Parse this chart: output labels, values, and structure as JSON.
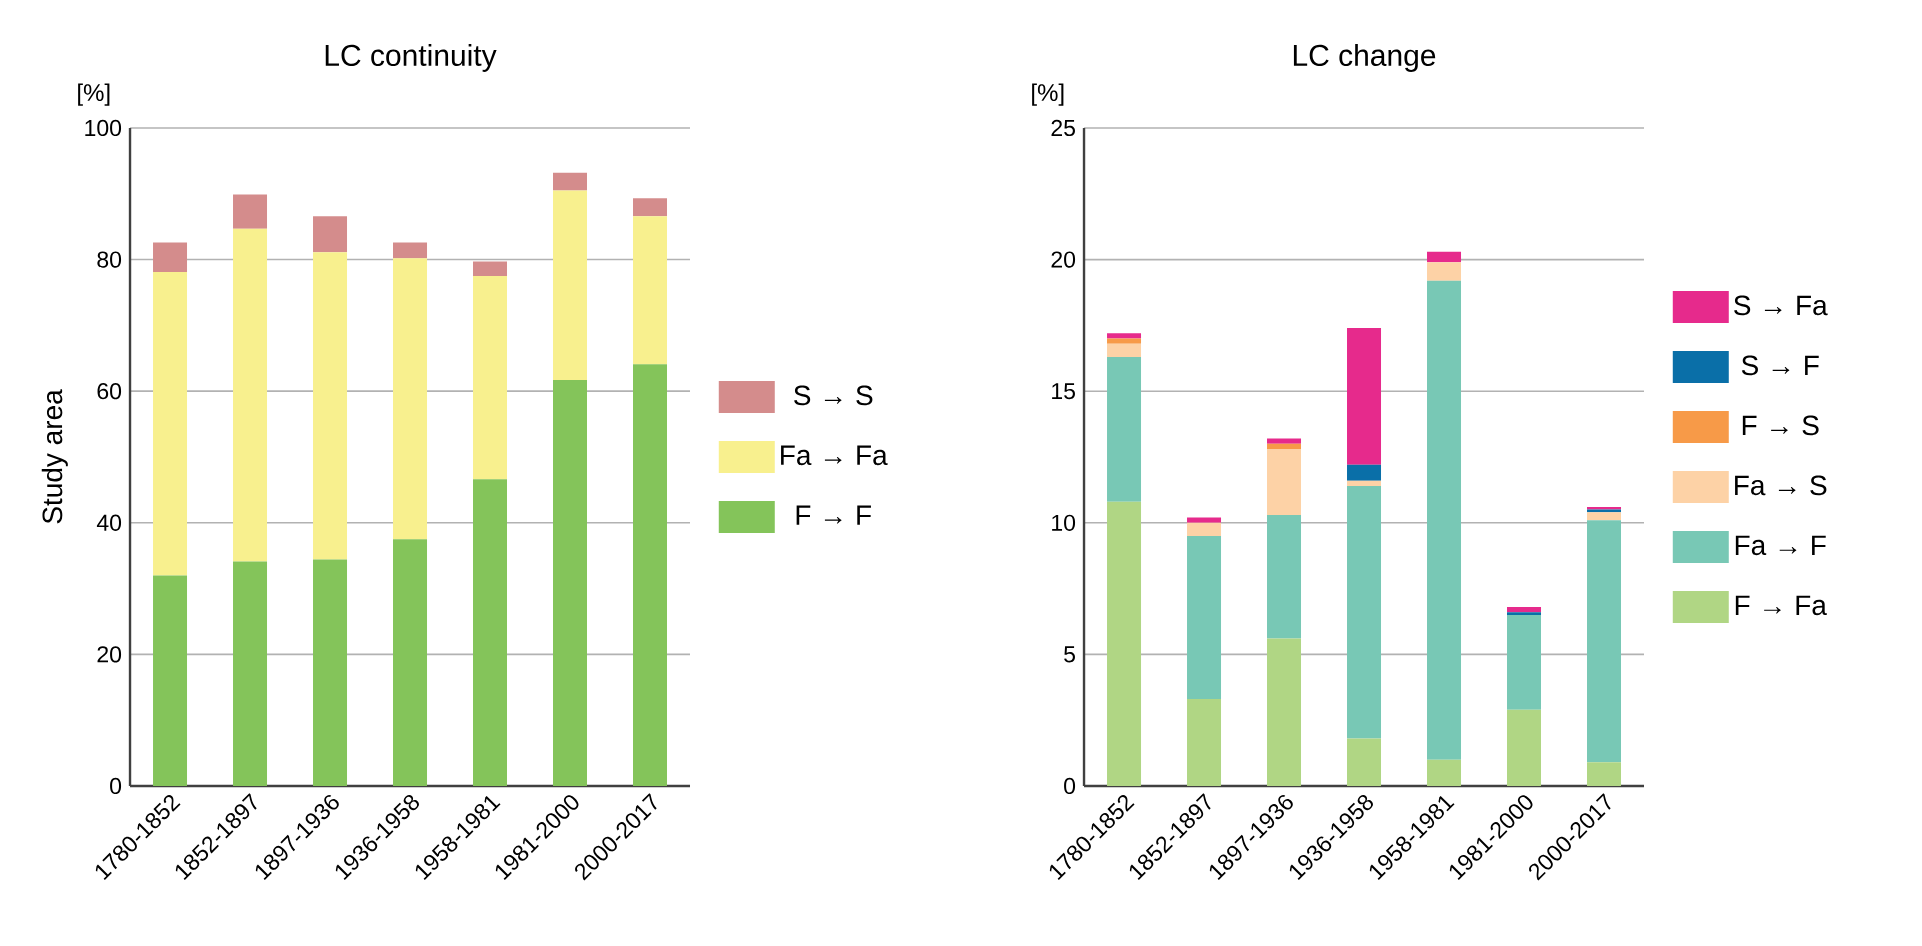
{
  "chart_data": [
    {
      "type": "bar",
      "title": "LC continuity",
      "ylabel": "Study area",
      "annotations": [
        "[%]"
      ],
      "stacked": true,
      "grid": "y",
      "legend": "right",
      "categories": [
        "1780-1852",
        "1852-1897",
        "1897-1936",
        "1936-1958",
        "1958-1981",
        "1981-2000",
        "2000-2017"
      ],
      "ylim": [
        0,
        100
      ],
      "yticks": [
        0,
        20,
        40,
        60,
        80,
        100
      ],
      "series": [
        {
          "name": "F → F",
          "color": "#84c45a",
          "values": [
            32.0,
            34.1,
            34.4,
            37.5,
            46.6,
            61.7,
            64.1
          ]
        },
        {
          "name": "Fa → Fa",
          "color": "#f8f08e",
          "values": [
            46.1,
            50.6,
            46.7,
            42.7,
            30.9,
            28.8,
            22.5
          ]
        },
        {
          "name": "S → S",
          "color": "#d48c8c",
          "values": [
            4.5,
            5.2,
            5.5,
            2.4,
            2.2,
            2.7,
            2.7
          ]
        }
      ]
    },
    {
      "type": "bar",
      "title": "LC change",
      "annotations": [
        "[%]"
      ],
      "stacked": true,
      "grid": "y",
      "legend": "right",
      "categories": [
        "1780-1852",
        "1852-1897",
        "1897-1936",
        "1936-1958",
        "1958-1981",
        "1981-2000",
        "2000-2017"
      ],
      "ylim": [
        0,
        25
      ],
      "yticks": [
        0,
        5,
        10,
        15,
        20,
        25
      ],
      "series": [
        {
          "name": "F → Fa",
          "color": "#b0d684",
          "values": [
            10.8,
            3.3,
            5.6,
            1.8,
            1.0,
            2.9,
            0.9
          ]
        },
        {
          "name": "Fa → F",
          "color": "#78c8b5",
          "values": [
            5.5,
            6.2,
            4.7,
            9.6,
            18.2,
            3.6,
            9.2
          ]
        },
        {
          "name": "Fa → S",
          "color": "#fdd2a6",
          "values": [
            0.5,
            0.5,
            2.5,
            0.2,
            0.7,
            0,
            0.3
          ]
        },
        {
          "name": "F → S",
          "color": "#f79a48",
          "values": [
            0.2,
            0,
            0.2,
            0,
            0,
            0,
            0
          ]
        },
        {
          "name": "S → F",
          "color": "#0a6fa8",
          "values": [
            0,
            0,
            0,
            0.6,
            0,
            0.1,
            0.1
          ]
        },
        {
          "name": "S → Fa",
          "color": "#e62a8c",
          "values": [
            0.2,
            0.2,
            0.2,
            5.2,
            0.4,
            0.2,
            0.1
          ]
        }
      ]
    }
  ]
}
